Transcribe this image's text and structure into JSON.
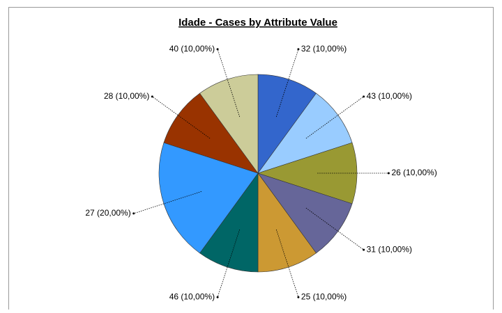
{
  "chart_data": {
    "type": "pie",
    "title": "Idade - Cases by Attribute Value",
    "values": [
      10,
      10,
      10,
      10,
      10,
      10,
      20,
      10,
      10
    ],
    "value_labels": [
      "32 (10,00%)",
      "43 (10,00%)",
      "26 (10,00%)",
      "31 (10,00%)",
      "25 (10,00%)",
      "46 (10,00%)",
      "27 (20,00%)",
      "28 (10,00%)",
      "40 (10,00%)"
    ],
    "colors": [
      "#3366cc",
      "#99ccff",
      "#999933",
      "#666699",
      "#cc9933",
      "#006666",
      "#3399ff",
      "#993300",
      "#cccc99"
    ]
  }
}
